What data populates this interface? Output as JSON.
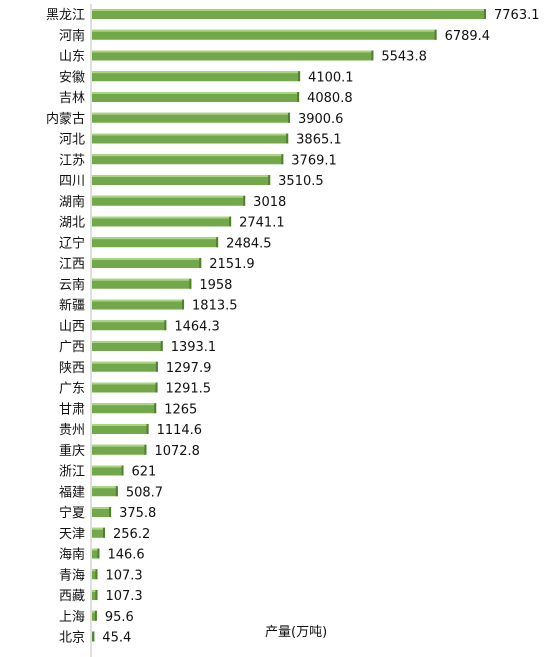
{
  "chart_data": {
    "type": "bar",
    "orientation": "horizontal",
    "categories": [
      "黑龙江",
      "河南",
      "山东",
      "安徽",
      "吉林",
      "内蒙古",
      "河北",
      "江苏",
      "四川",
      "湖南",
      "湖北",
      "辽宁",
      "江西",
      "云南",
      "新疆",
      "山西",
      "广西",
      "陕西",
      "广东",
      "甘肃",
      "贵州",
      "重庆",
      "浙江",
      "福建",
      "宁夏",
      "天津",
      "海南",
      "青海",
      "西藏",
      "上海",
      "北京"
    ],
    "values": [
      7763.1,
      6789.4,
      5543.8,
      4100.1,
      4080.8,
      3900.6,
      3865.1,
      3769.1,
      3510.5,
      3018,
      2741.1,
      2484.5,
      2151.9,
      1958,
      1813.5,
      1464.3,
      1393.1,
      1297.9,
      1291.5,
      1265,
      1114.6,
      1072.8,
      621,
      508.7,
      375.8,
      256.2,
      146.6,
      107.3,
      107.3,
      95.6,
      45.4
    ],
    "value_labels": [
      "7763.1",
      "6789.4",
      "5543.8",
      "4100.1",
      "4080.8",
      "3900.6",
      "3865.1",
      "3769.1",
      "3510.5",
      "3018",
      "2741.1",
      "2484.5",
      "2151.9",
      "1958",
      "1813.5",
      "1464.3",
      "1393.1",
      "1297.9",
      "1291.5",
      "1265",
      "1114.6",
      "1072.8",
      "621",
      "508.7",
      "375.8",
      "256.2",
      "146.6",
      "107.3",
      "107.3",
      "95.6",
      "45.4"
    ],
    "unit_label": "产量(万吨)",
    "xlim": [
      0,
      7763.1
    ],
    "grid": false,
    "legend": "none",
    "colors": {
      "bar": "#72a74a",
      "bar_top": "#a8d483",
      "bar_shade": "#4f7f2f",
      "axis": "#bfbfbf"
    }
  }
}
